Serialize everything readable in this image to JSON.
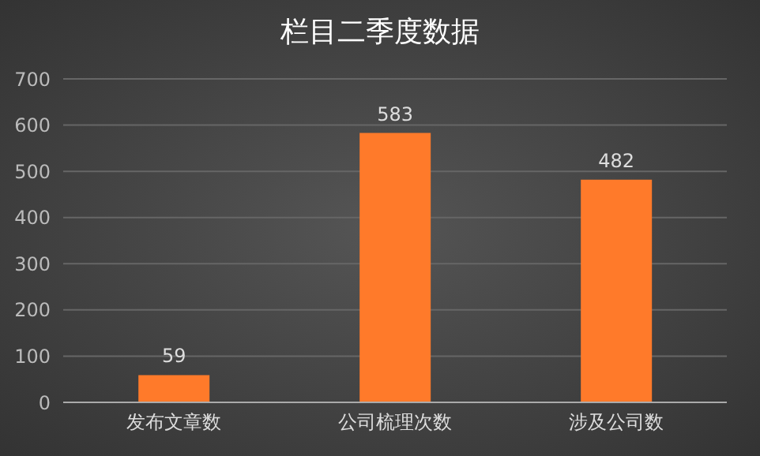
{
  "chart_data": {
    "type": "bar",
    "title": "栏目二季度数据",
    "categories": [
      "发布文章数",
      "公司梳理次数",
      "涉及公司数"
    ],
    "values": [
      59,
      583,
      482
    ],
    "color": "#ff7a2a",
    "ylim": [
      0,
      700
    ],
    "yticks": [
      0,
      100,
      200,
      300,
      400,
      500,
      600,
      700
    ],
    "grid": "y",
    "data_labels": true
  }
}
